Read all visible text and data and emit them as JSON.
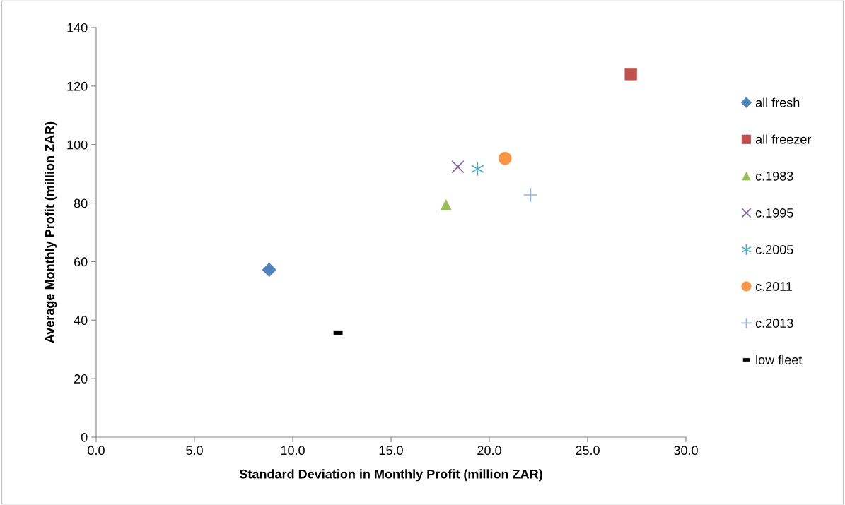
{
  "chart_data": {
    "type": "scatter",
    "xlabel": "Standard Deviation in Monthly Profit (million ZAR)",
    "ylabel": "Average Monthly Profit (million ZAR)",
    "xlim": [
      0,
      30
    ],
    "xticks": [
      {
        "value": 0,
        "label": "0.0"
      },
      {
        "value": 5,
        "label": "5.0"
      },
      {
        "value": 10,
        "label": "10.0"
      },
      {
        "value": 15,
        "label": "15.0"
      },
      {
        "value": 20,
        "label": "20.0"
      },
      {
        "value": 25,
        "label": "25.0"
      },
      {
        "value": 30,
        "label": "30.0"
      }
    ],
    "ylim": [
      0,
      140
    ],
    "yticks": [
      0,
      20,
      40,
      60,
      80,
      100,
      120,
      140
    ],
    "grid": false,
    "legend": "right",
    "series": [
      {
        "name": "all fresh",
        "color": "#4f81bd",
        "marker": "diamond",
        "x": [
          8.8
        ],
        "values": [
          57.2
        ]
      },
      {
        "name": "all freezer",
        "color": "#c0504d",
        "marker": "square",
        "x": [
          27.2
        ],
        "values": [
          124.1
        ]
      },
      {
        "name": "c.1983",
        "color": "#9bbb59",
        "marker": "triangle",
        "x": [
          17.8
        ],
        "values": [
          79.4
        ]
      },
      {
        "name": "c.1995",
        "color": "#8064a2",
        "marker": "x",
        "x": [
          18.4
        ],
        "values": [
          92.4
        ]
      },
      {
        "name": "c.2005",
        "color": "#4bacc6",
        "marker": "cross",
        "x": [
          19.4
        ],
        "values": [
          91.7
        ]
      },
      {
        "name": "c.2011",
        "color": "#f79646",
        "marker": "circle",
        "x": [
          20.8
        ],
        "values": [
          95.3
        ]
      },
      {
        "name": "c.2013",
        "color": "#95b3d7",
        "marker": "plus",
        "x": [
          22.1
        ],
        "values": [
          82.8
        ]
      },
      {
        "name": "low fleet",
        "color": "#000000",
        "x": [
          12.3
        ],
        "values": [
          35.7
        ]
      }
    ]
  }
}
